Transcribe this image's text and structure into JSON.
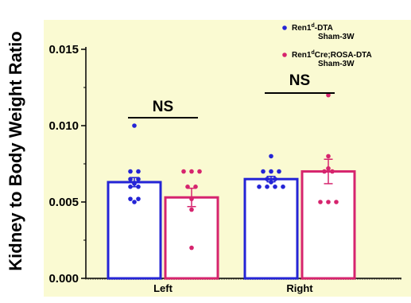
{
  "chart_data": {
    "type": "bar",
    "ylabel": "Kidney to Body Weight Ratio",
    "ylim": [
      0,
      0.015
    ],
    "yticks": [
      "0.000",
      "0.005",
      "0.010",
      "0.015"
    ],
    "categories": [
      "Left",
      "Right"
    ],
    "series": [
      {
        "name_main": "Ren1",
        "name_sup": "d",
        "name_rest": "-DTA",
        "name_line2": "Sham-3W",
        "color": "#2424d6",
        "values": [
          0.0063,
          0.0065
        ],
        "errors": [
          0.0003,
          0.00018
        ],
        "points": [
          [
            0.01,
            0.007,
            0.007,
            0.0065,
            0.0065,
            0.0062,
            0.006,
            0.006,
            0.0052,
            0.0052,
            0.005
          ],
          [
            0.008,
            0.007,
            0.007,
            0.007,
            0.0065,
            0.0065,
            0.0063,
            0.006,
            0.006,
            0.006,
            0.006
          ]
        ]
      },
      {
        "name_main": "Ren1",
        "name_sup": "d",
        "name_rest": "Cre;ROSA-DTA",
        "name_line2": "Sham-3W",
        "color": "#d6246e",
        "values": [
          0.0053,
          0.007
        ],
        "errors": [
          0.0006,
          0.0008
        ],
        "points": [
          [
            0.007,
            0.007,
            0.007,
            0.006,
            0.006,
            0.0052,
            0.0045,
            0.002
          ],
          [
            0.012,
            0.008,
            0.0072,
            0.007,
            0.007,
            0.005,
            0.005,
            0.005
          ]
        ]
      }
    ],
    "annotations": [
      {
        "text": "NS",
        "category": 0
      },
      {
        "text": "NS",
        "category": 1
      }
    ],
    "legend_position": "top-right",
    "plot_background": "#fafad2"
  }
}
